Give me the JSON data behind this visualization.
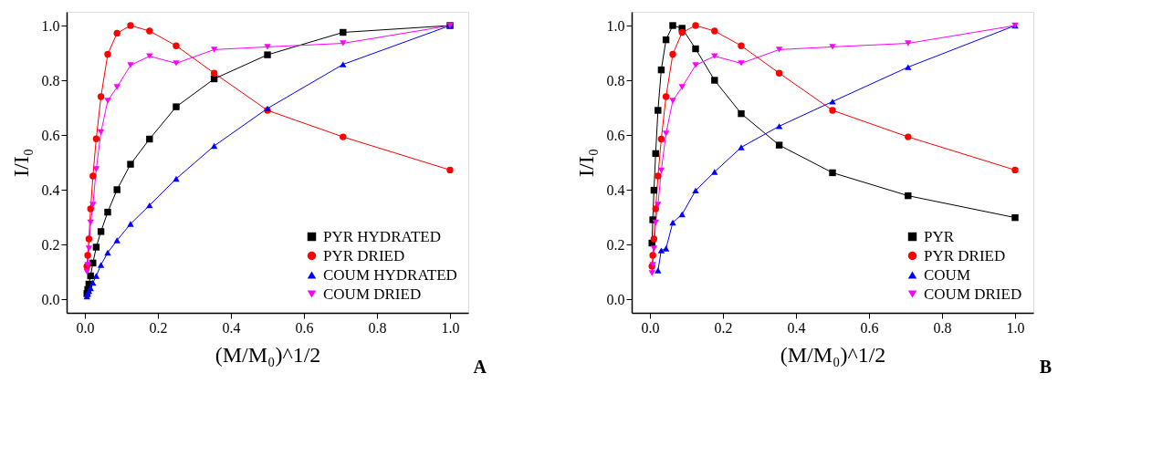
{
  "chart_data": [
    {
      "type": "line",
      "xlabel": "(M/M₀)^1/2",
      "ylabel": "I/I₀",
      "annotations": [
        "A"
      ],
      "legend": "bottom right",
      "x": [
        1.0,
        0.707,
        0.5,
        0.354,
        0.25,
        0.177,
        0.125,
        0.088,
        0.0625,
        0.044,
        0.031,
        0.022,
        0.0156,
        0.011,
        0.0078,
        0.0055
      ],
      "xlim": [
        -0.05,
        1.05
      ],
      "ylim": [
        -0.05,
        1.05
      ],
      "xticks": [
        {
          "value": 0,
          "label": "0.0"
        },
        0.2,
        0.4,
        0.6,
        0.8,
        {
          "value": 1,
          "label": "1.0"
        }
      ],
      "yticks": [
        {
          "value": 0,
          "label": "0.0"
        },
        0.2,
        0.4,
        0.6,
        0.8,
        {
          "value": 1,
          "label": "1.0"
        }
      ],
      "series": [
        {
          "name": "PYR HYDRATED",
          "color": "#000000",
          "marker": "square",
          "values": [
            1.0,
            0.975,
            0.893,
            0.805,
            0.703,
            0.585,
            0.493,
            0.4,
            0.318,
            0.247,
            0.19,
            0.132,
            0.085,
            0.055,
            0.035,
            0.02
          ]
        },
        {
          "name": "PYR DRIED",
          "color": "#ff0000",
          "marker": "circle",
          "values": [
            0.472,
            0.593,
            0.69,
            0.826,
            0.926,
            0.98,
            1.0,
            0.972,
            0.895,
            0.74,
            0.586,
            0.45,
            0.33,
            0.22,
            0.16,
            0.12
          ]
        },
        {
          "name": "COUM HYDRATED",
          "color": "#0000ff",
          "marker": "triangle",
          "values": [
            1.0,
            0.858,
            0.697,
            0.56,
            0.44,
            0.343,
            0.275,
            0.215,
            0.17,
            0.125,
            0.085,
            0.06,
            0.04,
            0.03,
            0.02,
            0.01
          ]
        },
        {
          "name": "COUM DRIED",
          "color": "#ff00ff",
          "marker": "triangle-down",
          "values": [
            1.0,
            0.935,
            0.922,
            0.912,
            0.862,
            0.888,
            0.855,
            0.775,
            0.725,
            0.61,
            0.475,
            0.345,
            0.28,
            0.185,
            0.125,
            0.1
          ]
        }
      ]
    },
    {
      "type": "line",
      "xlabel": "(M/M₀)^1/2",
      "ylabel": "I/I₀",
      "annotations": [
        "B"
      ],
      "legend": "bottom right",
      "x": [
        1.0,
        0.707,
        0.5,
        0.354,
        0.25,
        0.177,
        0.125,
        0.088,
        0.0625,
        0.044,
        0.031,
        0.022,
        0.0156,
        0.011,
        0.0078,
        0.0055
      ],
      "xlim": [
        -0.05,
        1.05
      ],
      "ylim": [
        -0.05,
        1.05
      ],
      "xticks": [
        {
          "value": 0,
          "label": "0.0"
        },
        0.2,
        0.4,
        0.6,
        0.8,
        {
          "value": 1,
          "label": "1.0"
        }
      ],
      "yticks": [
        {
          "value": 0,
          "label": "0.0"
        },
        0.2,
        0.4,
        0.6,
        0.8,
        {
          "value": 1,
          "label": "1.0"
        }
      ],
      "series": [
        {
          "name": "PYR",
          "color": "#000000",
          "marker": "square",
          "values": [
            0.298,
            0.378,
            0.462,
            0.563,
            0.678,
            0.8,
            0.915,
            0.99,
            1.0,
            0.948,
            0.838,
            0.69,
            0.532,
            0.398,
            0.29,
            0.205
          ]
        },
        {
          "name": "PYR DRIED",
          "color": "#ff0000",
          "marker": "circle",
          "values": [
            0.472,
            0.593,
            0.69,
            0.826,
            0.926,
            0.98,
            1.0,
            0.975,
            0.895,
            0.74,
            0.585,
            0.45,
            0.33,
            0.22,
            0.16,
            0.12
          ]
        },
        {
          "name": "COUM",
          "color": "#0000ff",
          "marker": "triangle",
          "x": [
            1.0,
            0.707,
            0.5,
            0.354,
            0.25,
            0.177,
            0.125,
            0.088,
            0.0625,
            0.044,
            0.031,
            0.022
          ],
          "values": [
            1.0,
            0.848,
            0.722,
            0.632,
            0.555,
            0.465,
            0.397,
            0.31,
            0.28,
            0.185,
            0.178,
            0.105
          ]
        },
        {
          "name": "COUM DRIED",
          "color": "#ff00ff",
          "marker": "triangle-down",
          "values": [
            1.0,
            0.935,
            0.922,
            0.912,
            0.862,
            0.888,
            0.855,
            0.775,
            0.725,
            0.605,
            0.47,
            0.345,
            0.28,
            0.185,
            0.125,
            0.095
          ]
        }
      ]
    }
  ]
}
